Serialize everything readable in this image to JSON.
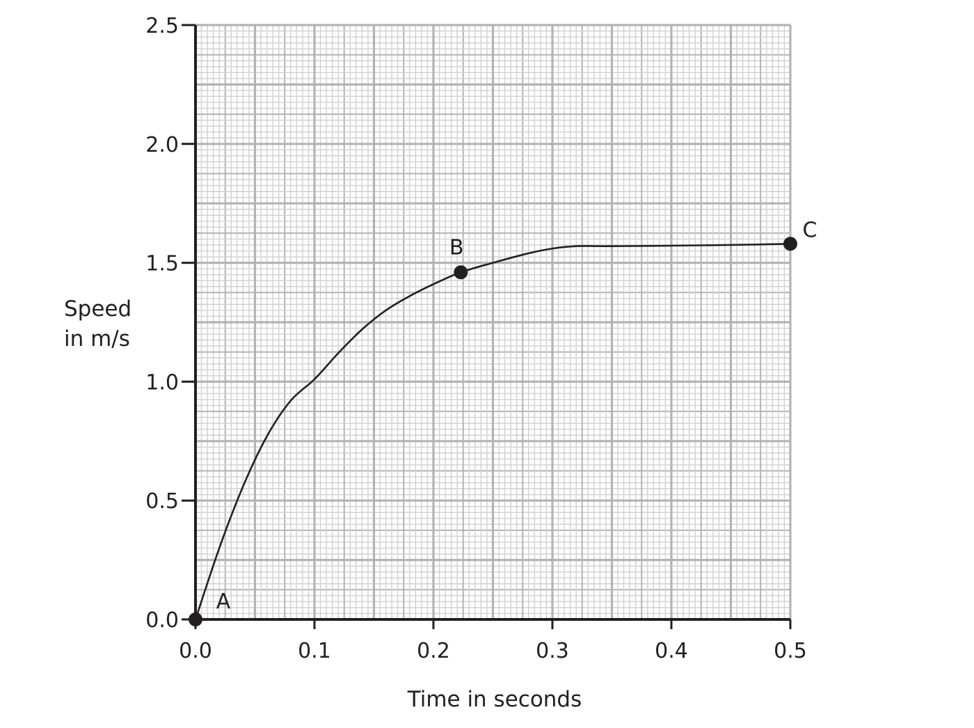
{
  "chart_data": {
    "type": "line",
    "xlabel": "Time in seconds",
    "ylabel": [
      "Speed",
      "in m/s"
    ],
    "xlim": [
      0,
      0.5
    ],
    "ylim": [
      0,
      2.5
    ],
    "x_ticks": [
      "0.0",
      "0.1",
      "0.2",
      "0.3",
      "0.4",
      "0.5"
    ],
    "y_ticks": [
      "0.0",
      "0.5",
      "1.0",
      "1.5",
      "2.0",
      "2.5"
    ],
    "grid": true,
    "colors": {
      "line": "#231f20",
      "grid_major": "#b3b3b3",
      "grid_minor": "#d0d0d0"
    },
    "series": [
      {
        "x": [
          0,
          0.02,
          0.04,
          0.06,
          0.08,
          0.1,
          0.12,
          0.14,
          0.16,
          0.18,
          0.2,
          0.223,
          0.25,
          0.28,
          0.3,
          0.32,
          0.35,
          0.4,
          0.45,
          0.5
        ],
        "y": [
          0,
          0.3,
          0.56,
          0.77,
          0.92,
          1.01,
          1.12,
          1.22,
          1.3,
          1.36,
          1.41,
          1.46,
          1.5,
          1.54,
          1.56,
          1.57,
          1.57,
          1.572,
          1.575,
          1.58
        ]
      }
    ],
    "points": [
      {
        "label": "A",
        "x": 0,
        "y": 0
      },
      {
        "label": "B",
        "x": 0.223,
        "y": 1.46
      },
      {
        "label": "C",
        "x": 0.5,
        "y": 1.58
      }
    ]
  }
}
